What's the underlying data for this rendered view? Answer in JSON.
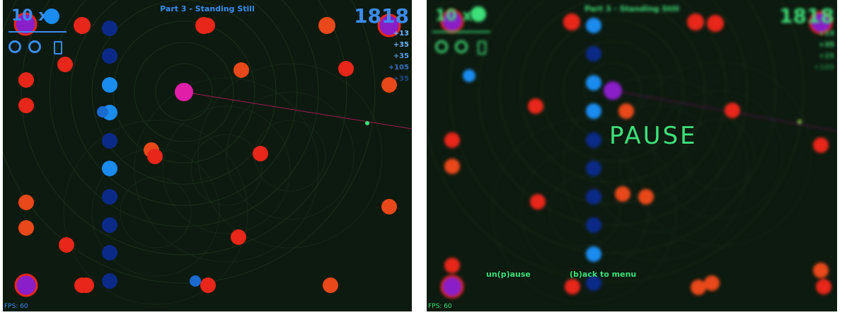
{
  "screens": [
    {
      "title": "Part 3 - Standing Still",
      "multiplier": "10 x",
      "score": "1818",
      "bonuses": [
        "+13",
        "+35",
        "+35",
        "+105",
        "+35"
      ],
      "fps": "FPS: 60",
      "paused": false
    },
    {
      "title": "Part 3 - Standing Still",
      "multiplier": "10 x",
      "score": "1818",
      "bonuses": [
        "+13",
        "+35",
        "+25",
        "+105"
      ],
      "fps": "FPS: 60",
      "paused": true,
      "pause_label": "PAUSE",
      "unpause_option": "un(p)ause",
      "back_option": "(b)ack to menu"
    }
  ],
  "colors": {
    "background": "#0d1a0f",
    "hud_left": "#3b8cf0",
    "hud_right": "#3ee07a",
    "enemy_red": "#e8261a",
    "enemy_orange": "#e8481a",
    "ally_blue": "#1a8cf0",
    "ally_dark_blue": "#0b2a88",
    "player": "#e01ea8",
    "purple": "#8a1ec8"
  }
}
